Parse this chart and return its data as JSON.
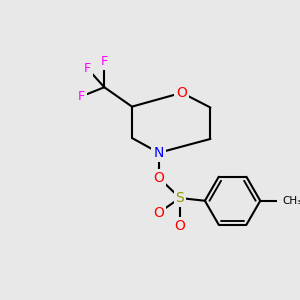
{
  "background_color": "#e8e8e8",
  "bond_color": "#000000",
  "bond_width": 1.5,
  "atom_colors": {
    "F": "#ff00ff",
    "O": "#ff0000",
    "N": "#0000ff",
    "S": "#999900",
    "C": "#000000"
  },
  "font_size_atoms": 9,
  "font_size_methyl": 8
}
